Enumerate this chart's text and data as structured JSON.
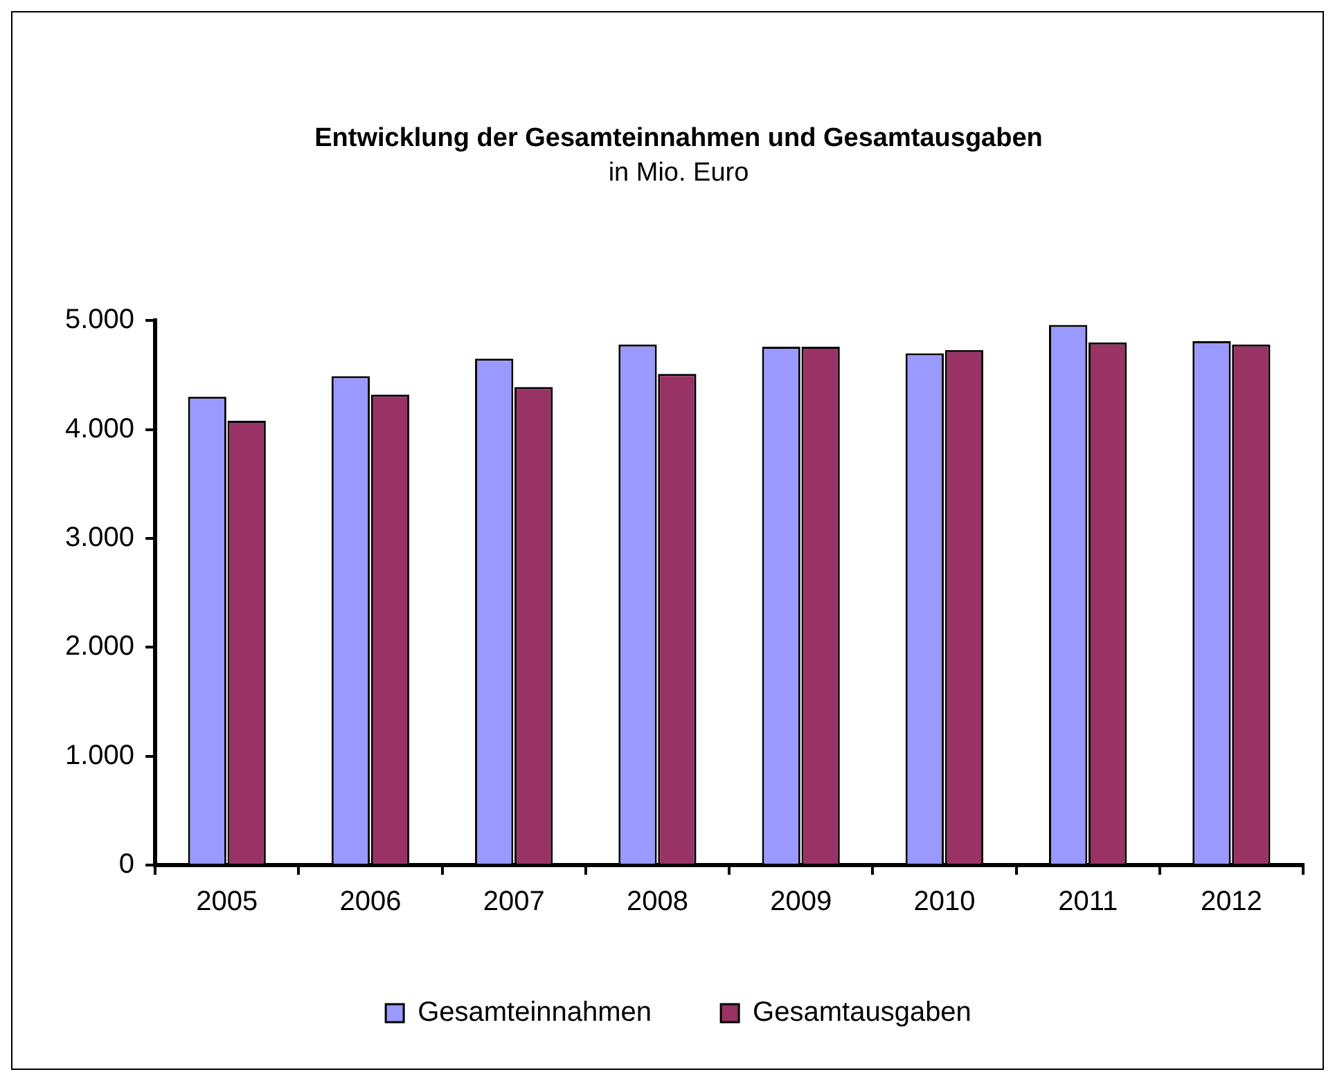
{
  "chart_data": {
    "type": "bar",
    "title": "Entwicklung der Gesamteinnahmen und Gesamtausgaben",
    "subtitle": "in Mio. Euro",
    "categories": [
      "2005",
      "2006",
      "2007",
      "2008",
      "2009",
      "2010",
      "2011",
      "2012"
    ],
    "series": [
      {
        "name": "Gesamteinnahmen",
        "color": "#9999ff",
        "values": [
          4300,
          4490,
          4650,
          4780,
          4760,
          4700,
          4960,
          4810
        ]
      },
      {
        "name": "Gesamtausgaben",
        "color": "#993366",
        "values": [
          4080,
          4320,
          4390,
          4510,
          4760,
          4730,
          4800,
          4780
        ]
      }
    ],
    "ylim": [
      0,
      5000
    ],
    "yticks": [
      {
        "value": 0,
        "label": "0"
      },
      {
        "value": 1000,
        "label": "1.000"
      },
      {
        "value": 2000,
        "label": "2.000"
      },
      {
        "value": 3000,
        "label": "3.000"
      },
      {
        "value": 4000,
        "label": "4.000"
      },
      {
        "value": 5000,
        "label": "5.000"
      }
    ],
    "grid": false,
    "legend": "bottom"
  }
}
